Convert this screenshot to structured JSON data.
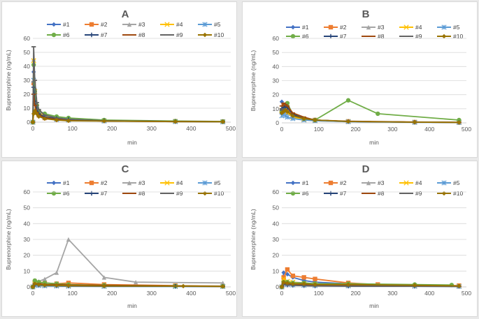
{
  "legend_labels": [
    "#1",
    "#2",
    "#3",
    "#4",
    "#5",
    "#6",
    "#7",
    "#8",
    "#9",
    "#10"
  ],
  "colors": [
    "#4472c4",
    "#ed7d31",
    "#a5a5a5",
    "#ffc000",
    "#5b9bd5",
    "#70ad47",
    "#264478",
    "#9e480e",
    "#636363",
    "#997300"
  ],
  "markers": [
    "diamond",
    "square",
    "triangle",
    "x",
    "star",
    "circle",
    "plus",
    "dash",
    "dash",
    "diamond"
  ],
  "chart_data": [
    {
      "type": "line",
      "title": "A",
      "xlabel": "min",
      "ylabel": "Buprenorphine (ng/mL)",
      "xlim": [
        0,
        500
      ],
      "ylim": [
        0,
        60
      ],
      "xticks": [
        0,
        100,
        200,
        300,
        400,
        500
      ],
      "yticks": [
        0,
        10,
        20,
        30,
        40,
        50,
        60
      ],
      "series": [
        {
          "name": "#1",
          "x": [
            0,
            2,
            5,
            10,
            15,
            30,
            60,
            90,
            180,
            360,
            480
          ],
          "y": [
            0,
            36,
            20,
            12,
            8,
            5,
            3.5,
            2.5,
            1.2,
            0.5,
            0.3
          ]
        },
        {
          "name": "#2",
          "x": [
            0,
            2,
            5,
            10,
            15,
            30,
            60,
            90,
            180,
            360,
            480
          ],
          "y": [
            0,
            28,
            14,
            7,
            5,
            3,
            2,
            1.5,
            1,
            0.6,
            0.4
          ]
        },
        {
          "name": "#3",
          "x": [
            0,
            2,
            5,
            10,
            15,
            30,
            60,
            90,
            180,
            360,
            480
          ],
          "y": [
            0,
            45,
            25,
            13,
            8,
            5,
            3,
            2,
            1,
            0.5,
            0.3
          ]
        },
        {
          "name": "#4",
          "x": [
            0,
            2,
            5,
            10,
            15,
            30,
            60,
            90,
            180,
            360,
            480
          ],
          "y": [
            0,
            44,
            22,
            11,
            7,
            4,
            2.5,
            1.8,
            1,
            0.5,
            0.3
          ]
        },
        {
          "name": "#5",
          "x": [
            0,
            2,
            5,
            10,
            15,
            30,
            60,
            90,
            180,
            360,
            480
          ],
          "y": [
            0,
            30,
            16,
            9,
            6,
            3.5,
            2,
            1.5,
            0.8,
            0.4,
            0.2
          ]
        },
        {
          "name": "#6",
          "x": [
            0,
            2,
            5,
            10,
            15,
            30,
            60,
            90,
            180,
            360,
            480
          ],
          "y": [
            0,
            41,
            22,
            12,
            8,
            6,
            4,
            3,
            1.5,
            0.8,
            0.5
          ]
        },
        {
          "name": "#7",
          "x": [
            0,
            2,
            5,
            10,
            15,
            30,
            60,
            90,
            180,
            360,
            480
          ],
          "y": [
            0,
            25,
            15,
            9,
            6,
            3.5,
            2.5,
            2,
            1,
            0.5,
            0.3
          ]
        },
        {
          "name": "#8",
          "x": [
            0,
            2,
            5,
            10,
            15,
            30,
            60,
            90,
            180,
            360,
            480
          ],
          "y": [
            0,
            20,
            12,
            7,
            5,
            3,
            2,
            1.5,
            0.8,
            0.4,
            0.3
          ]
        },
        {
          "name": "#9",
          "x": [
            0,
            2,
            5,
            10,
            15,
            30,
            60,
            90,
            180,
            360,
            480
          ],
          "y": [
            0,
            54,
            30,
            14,
            9,
            5,
            3,
            2,
            1,
            0.5,
            0.3
          ]
        },
        {
          "name": "#10",
          "x": [
            0,
            2,
            5,
            10,
            15,
            30,
            60,
            90,
            180,
            360,
            480
          ],
          "y": [
            0,
            6,
            8,
            6,
            4,
            2.5,
            1.5,
            1,
            0.8,
            0.4,
            0.3
          ]
        }
      ]
    },
    {
      "type": "line",
      "title": "B",
      "xlabel": "min",
      "ylabel": "Buprenorphine (ng/mL)",
      "xlim": [
        0,
        500
      ],
      "ylim": [
        0,
        60
      ],
      "xticks": [
        0,
        100,
        200,
        300,
        400,
        500
      ],
      "yticks": [
        0,
        10,
        20,
        30,
        40,
        50,
        60
      ],
      "series": [
        {
          "name": "#1",
          "x": [
            0,
            5,
            10,
            15,
            30,
            60,
            90,
            180,
            360,
            480
          ],
          "y": [
            15,
            12,
            13,
            11,
            6,
            3,
            2,
            1,
            0.5,
            0.3
          ]
        },
        {
          "name": "#2",
          "x": [
            0,
            5,
            10,
            15,
            30,
            60,
            90,
            180,
            360,
            480
          ],
          "y": [
            8,
            12,
            10,
            9,
            5,
            3,
            2,
            1,
            0.5,
            0.3
          ]
        },
        {
          "name": "#3",
          "x": [
            0,
            5,
            10,
            15,
            30,
            60,
            90,
            180,
            360,
            480
          ],
          "y": [
            10,
            9,
            8,
            7,
            4,
            2.5,
            1.5,
            1,
            0.5,
            0.3
          ]
        },
        {
          "name": "#4",
          "x": [
            0,
            5,
            10,
            15,
            30,
            60,
            90,
            180,
            360,
            480
          ],
          "y": [
            9,
            10,
            8,
            7,
            4,
            2.5,
            1.5,
            1,
            0.5,
            0.3
          ]
        },
        {
          "name": "#5",
          "x": [
            0,
            5,
            10,
            15,
            30,
            60,
            90,
            180,
            360,
            480
          ],
          "y": [
            5,
            6,
            5,
            4,
            3,
            2,
            1.5,
            0.8,
            0.4,
            0.3
          ]
        },
        {
          "name": "#6",
          "x": [
            0,
            5,
            10,
            15,
            30,
            60,
            90,
            180,
            260,
            480
          ],
          "y": [
            8,
            9,
            12,
            14,
            6,
            3,
            2,
            16,
            6.5,
            2
          ]
        },
        {
          "name": "#7",
          "x": [
            0,
            5,
            10,
            15,
            30,
            60,
            90,
            180,
            360,
            480
          ],
          "y": [
            10,
            11,
            12,
            11,
            6,
            3,
            2,
            1,
            0.5,
            0.3
          ]
        },
        {
          "name": "#8",
          "x": [
            0,
            5,
            10,
            15,
            30,
            60,
            90,
            180,
            360,
            480
          ],
          "y": [
            12,
            14,
            13,
            12,
            7,
            4,
            2,
            1.2,
            0.6,
            0.4
          ]
        },
        {
          "name": "#9",
          "x": [
            0,
            5,
            10,
            15,
            30,
            60,
            90,
            180,
            360,
            480
          ],
          "y": [
            9,
            10,
            9,
            8,
            5,
            3,
            2,
            1,
            0.5,
            0.3
          ]
        },
        {
          "name": "#10",
          "x": [
            0,
            5,
            10,
            15,
            30,
            60,
            90,
            180,
            360,
            480
          ],
          "y": [
            7,
            8,
            9,
            8,
            5,
            3,
            2,
            1,
            0.5,
            0.3
          ]
        }
      ]
    },
    {
      "type": "line",
      "title": "C",
      "xlabel": "min",
      "ylabel": "Buprenorphine (ng/mL)",
      "xlim": [
        0,
        500
      ],
      "ylim": [
        0,
        60
      ],
      "xticks": [
        0,
        100,
        200,
        300,
        400,
        500
      ],
      "yticks": [
        0,
        10,
        20,
        30,
        40,
        50,
        60
      ],
      "series": [
        {
          "name": "#1",
          "x": [
            0,
            5,
            15,
            30,
            60,
            90,
            180,
            360,
            480
          ],
          "y": [
            0,
            1.5,
            1.2,
            1,
            0.8,
            0.6,
            0.5,
            0.4,
            0.3
          ]
        },
        {
          "name": "#2",
          "x": [
            0,
            5,
            15,
            30,
            60,
            90,
            180,
            360,
            480
          ],
          "y": [
            0,
            3,
            2.5,
            2.5,
            2,
            2.5,
            1.5,
            0.8,
            0.5
          ]
        },
        {
          "name": "#3",
          "x": [
            0,
            5,
            15,
            30,
            60,
            90,
            180,
            260,
            480
          ],
          "y": [
            0,
            3,
            3.5,
            5,
            9,
            30,
            6,
            3,
            2.5
          ]
        },
        {
          "name": "#4",
          "x": [
            0,
            5,
            15,
            30,
            60,
            90,
            180,
            360,
            480
          ],
          "y": [
            0,
            2,
            1.5,
            1.2,
            1,
            0.8,
            0.6,
            0.4,
            0.3
          ]
        },
        {
          "name": "#5",
          "x": [
            0,
            5,
            15,
            30,
            60,
            90,
            180,
            360,
            480
          ],
          "y": [
            0,
            1,
            0.8,
            0.6,
            0.5,
            0.4,
            0.3,
            0.2,
            0.2
          ]
        },
        {
          "name": "#6",
          "x": [
            0,
            5,
            15,
            30,
            60,
            90,
            180,
            360,
            480
          ],
          "y": [
            0,
            4,
            3,
            2.5,
            2,
            1.5,
            1,
            0.6,
            0.4
          ]
        },
        {
          "name": "#7",
          "x": [
            0,
            5,
            15,
            30,
            60,
            90,
            180,
            360,
            480
          ],
          "y": [
            0,
            1.5,
            1.2,
            1,
            0.8,
            0.6,
            0.5,
            0.4,
            0.3
          ]
        },
        {
          "name": "#8",
          "x": [
            0,
            5,
            15,
            30,
            60,
            90,
            180,
            360,
            480
          ],
          "y": [
            0,
            2,
            2,
            1.5,
            1.5,
            1.2,
            1,
            0.6,
            0.4
          ]
        },
        {
          "name": "#9",
          "x": [
            0,
            5,
            15,
            30,
            60,
            90,
            180,
            360,
            480
          ],
          "y": [
            0,
            1.5,
            1.2,
            1,
            0.8,
            0.6,
            0.5,
            0.4,
            0.3
          ]
        },
        {
          "name": "#10",
          "x": [
            0,
            5,
            15,
            30,
            60,
            90,
            180,
            380,
            480
          ],
          "y": [
            0,
            2,
            1.5,
            1.2,
            1,
            0.8,
            0.6,
            0.5,
            0.3
          ]
        }
      ]
    },
    {
      "type": "line",
      "title": "D",
      "xlabel": "min",
      "ylabel": "Buprenorphine (ng/mL)",
      "xlim": [
        0,
        500
      ],
      "ylim": [
        0,
        60
      ],
      "xticks": [
        0,
        100,
        200,
        300,
        400,
        500
      ],
      "yticks": [
        0,
        10,
        20,
        30,
        40,
        50,
        60
      ],
      "series": [
        {
          "name": "#1",
          "x": [
            0,
            5,
            15,
            30,
            60,
            90,
            180,
            360,
            480
          ],
          "y": [
            0,
            9,
            8,
            6,
            4,
            3,
            2,
            1,
            0.5
          ]
        },
        {
          "name": "#2",
          "x": [
            0,
            5,
            15,
            30,
            60,
            90,
            180,
            260,
            480
          ],
          "y": [
            0,
            6,
            11,
            7,
            6,
            5,
            2.5,
            1.5,
            0.8
          ]
        },
        {
          "name": "#3",
          "x": [
            0,
            5,
            15,
            30,
            60,
            90,
            180,
            360,
            480
          ],
          "y": [
            0,
            4,
            3.5,
            3,
            2.5,
            2,
            1.5,
            1,
            0.5
          ]
        },
        {
          "name": "#4",
          "x": [
            0,
            5,
            15,
            30,
            60,
            90,
            180,
            360,
            480
          ],
          "y": [
            0,
            5,
            3.5,
            3,
            2,
            1.5,
            1,
            0.6,
            0.4
          ]
        },
        {
          "name": "#5",
          "x": [
            0,
            5,
            15,
            30,
            60,
            90,
            180,
            360,
            480
          ],
          "y": [
            0,
            2,
            1.5,
            1.2,
            1,
            0.8,
            0.6,
            0.4,
            0.3
          ]
        },
        {
          "name": "#6",
          "x": [
            0,
            5,
            15,
            30,
            60,
            90,
            180,
            360,
            460
          ],
          "y": [
            0,
            3,
            3,
            2.5,
            2.5,
            2,
            2,
            1.5,
            1.2
          ]
        },
        {
          "name": "#7",
          "x": [
            0,
            5,
            15,
            30,
            60,
            90,
            180,
            360,
            480
          ],
          "y": [
            0,
            1.5,
            1.2,
            1,
            0.8,
            0.6,
            0.5,
            0.4,
            0.3
          ]
        },
        {
          "name": "#8",
          "x": [
            0,
            5,
            15,
            30,
            60,
            90,
            180,
            360,
            480
          ],
          "y": [
            0,
            2,
            2,
            1.5,
            1.5,
            1.2,
            1,
            0.6,
            0.4
          ]
        },
        {
          "name": "#9",
          "x": [
            0,
            5,
            15,
            30,
            60,
            90,
            180,
            360,
            480
          ],
          "y": [
            0,
            1.5,
            1.2,
            1,
            0.8,
            0.6,
            0.5,
            0.4,
            0.3
          ]
        },
        {
          "name": "#10",
          "x": [
            0,
            5,
            15,
            30,
            60,
            90,
            180,
            360,
            480
          ],
          "y": [
            0,
            3,
            2.5,
            2,
            2,
            1.5,
            1.5,
            1,
            0.6
          ]
        }
      ]
    }
  ]
}
